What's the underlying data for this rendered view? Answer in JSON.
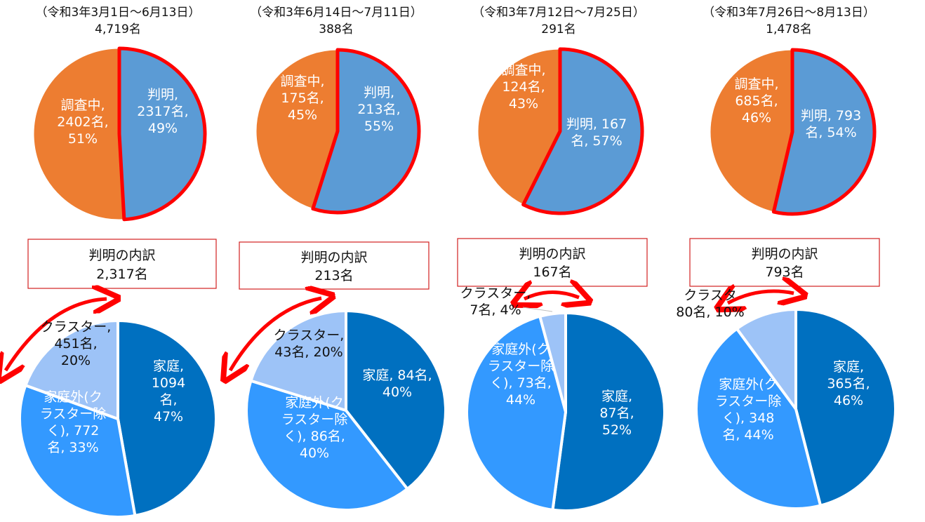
{
  "colors": {
    "identified": "#5b9bd5",
    "under_investigation": "#ed7d31",
    "highlight": "#ff0000",
    "household": "#0070c0",
    "outside_household": "#3399ff",
    "cluster": "#9dc3f7"
  },
  "chart_data": [
    {
      "type": "pie",
      "title": "（令和3年3月1日～6月13日）",
      "total_label": "4,719名",
      "slices": [
        {
          "name": "判明",
          "value": 2317,
          "percent": 49,
          "label": [
            "判明,",
            "2317名,",
            "49%"
          ]
        },
        {
          "name": "調査中",
          "value": 2402,
          "percent": 51,
          "label": [
            "調査中,",
            "2402名,",
            "51%"
          ]
        }
      ]
    },
    {
      "type": "pie",
      "title": "（令和3年6月14日～7月11日）",
      "total_label": "388名",
      "slices": [
        {
          "name": "判明",
          "value": 213,
          "percent": 55,
          "label": [
            "判明,",
            "213名,",
            "55%"
          ]
        },
        {
          "name": "調査中",
          "value": 175,
          "percent": 45,
          "label": [
            "調査中,",
            "175名,",
            "45%"
          ]
        }
      ]
    },
    {
      "type": "pie",
      "title": "（令和3年7月12日～7月25日）",
      "total_label": "291名",
      "slices": [
        {
          "name": "判明",
          "value": 167,
          "percent": 57,
          "label": [
            "判明, 167",
            "名, 57%"
          ]
        },
        {
          "name": "調査中",
          "value": 124,
          "percent": 43,
          "label": [
            "調査中,",
            "124名,",
            "43%"
          ]
        }
      ]
    },
    {
      "type": "pie",
      "title": "（令和3年7月26日～8月13日）",
      "total_label": "1,478名",
      "slices": [
        {
          "name": "判明",
          "value": 793,
          "percent": 54,
          "label": [
            "判明, 793",
            "名, 54%"
          ]
        },
        {
          "name": "調査中",
          "value": 685,
          "percent": 46,
          "label": [
            "調査中,",
            "685名,",
            "46%"
          ]
        }
      ]
    },
    {
      "type": "pie",
      "title": "判明の内訳",
      "total_label": "2,317名",
      "slices": [
        {
          "name": "家庭",
          "value": 1094,
          "percent": 47,
          "label": [
            "家庭,",
            "1094",
            "名,",
            "47%"
          ]
        },
        {
          "name": "家庭外(クラスター除く)",
          "value": 772,
          "percent": 33,
          "label": [
            "家庭外(ク",
            "ラスター除",
            "く), 772",
            "名, 33%"
          ]
        },
        {
          "name": "クラスター",
          "value": 451,
          "percent": 20,
          "label": [
            "クラスター,",
            "451名,",
            "20%"
          ]
        }
      ]
    },
    {
      "type": "pie",
      "title": "判明の内訳",
      "total_label": "213名",
      "slices": [
        {
          "name": "家庭",
          "value": 84,
          "percent": 40,
          "label": [
            "家庭, 84名,",
            "40%"
          ]
        },
        {
          "name": "家庭外(クラスター除く)",
          "value": 86,
          "percent": 40,
          "label": [
            "家庭外(ク",
            "ラスター除",
            "く), 86名,",
            "40%"
          ]
        },
        {
          "name": "クラスター",
          "value": 43,
          "percent": 20,
          "label": [
            "クラスター,",
            "43名, 20%"
          ]
        }
      ]
    },
    {
      "type": "pie",
      "title": "判明の内訳",
      "total_label": "167名",
      "slices": [
        {
          "name": "家庭",
          "value": 87,
          "percent": 52,
          "label": [
            "家庭,",
            "87名,",
            "52%"
          ]
        },
        {
          "name": "家庭外(クラスター除く)",
          "value": 73,
          "percent": 44,
          "label": [
            "家庭外(ク",
            "ラスター除",
            "く), 73名,",
            "44%"
          ]
        },
        {
          "name": "クラスター",
          "value": 7,
          "percent": 4,
          "label": [
            "クラスター,",
            "7名, 4%"
          ]
        }
      ]
    },
    {
      "type": "pie",
      "title": "判明の内訳",
      "total_label": "793名",
      "slices": [
        {
          "name": "家庭",
          "value": 365,
          "percent": 46,
          "label": [
            "家庭,",
            "365名,",
            "46%"
          ]
        },
        {
          "name": "家庭外(クラスター除く)",
          "value": 348,
          "percent": 44,
          "label": [
            "家庭外(ク",
            "ラスター除",
            "く), 348",
            "名, 44%"
          ]
        },
        {
          "name": "クラスター",
          "value": 80,
          "percent": 10,
          "label": [
            "クラスタ",
            "80名, 10%"
          ]
        }
      ]
    }
  ]
}
